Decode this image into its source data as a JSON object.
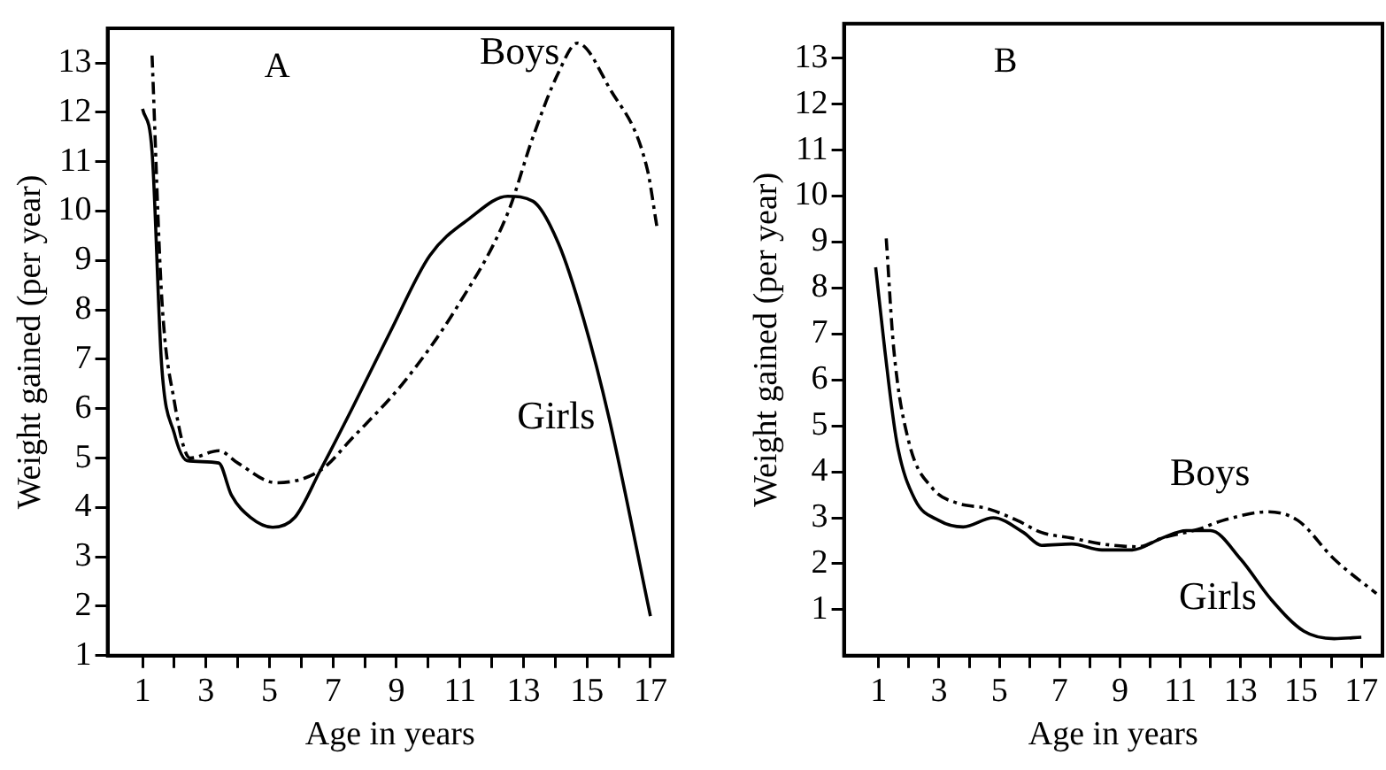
{
  "chart_data": [
    {
      "type": "line",
      "title": "A",
      "xlabel": "Age in years",
      "ylabel": "Weight gained (per year)",
      "xlim": [
        -0.1,
        17.7
      ],
      "ylim": [
        1,
        13.7
      ],
      "xticks": [
        1,
        {
          "value": 2,
          "label": null
        },
        3,
        {
          "value": 4,
          "label": null
        },
        5,
        {
          "value": 6,
          "label": null
        },
        7,
        {
          "value": 8,
          "label": null
        },
        9,
        {
          "value": 10,
          "label": null
        },
        11,
        {
          "value": 12,
          "label": null
        },
        13,
        {
          "value": 14,
          "label": null
        },
        15,
        {
          "value": 16,
          "label": null
        },
        17
      ],
      "yticks": [
        1,
        2,
        3,
        4,
        5,
        6,
        7,
        8,
        9,
        10,
        11,
        12,
        13
      ],
      "grid": false,
      "marker": "none",
      "series": [
        {
          "name": "Boys",
          "color": "#000000",
          "line_style": "dashed",
          "x": [
            1.3,
            1.6,
            2.0,
            2.5,
            3.4,
            4.0,
            5.2,
            6.6,
            7.6,
            9.25,
            10.9,
            12.5,
            13.3,
            14.1,
            14.7,
            15.7,
            16.9,
            17.2
          ],
          "values": [
            13.15,
            8.3,
            6.15,
            5.0,
            5.15,
            4.9,
            4.5,
            4.75,
            5.4,
            6.55,
            8.05,
            9.95,
            11.5,
            12.8,
            13.4,
            12.5,
            10.85,
            9.7
          ]
        },
        {
          "name": "Girls",
          "color": "#000000",
          "line_style": "solid",
          "x": [
            1.0,
            1.3,
            1.6,
            2.0,
            2.4,
            3.4,
            3.8,
            4.4,
            5.1,
            5.8,
            6.6,
            7.6,
            8.8,
            10.05,
            11.3,
            12.5,
            13.3,
            14.1,
            14.9,
            15.7,
            17.0
          ],
          "values": [
            12.07,
            11.2,
            6.9,
            5.5,
            4.95,
            4.9,
            4.25,
            3.8,
            3.6,
            3.8,
            4.75,
            6.0,
            7.55,
            9.1,
            9.85,
            10.3,
            10.2,
            9.35,
            7.8,
            5.8,
            1.8
          ]
        }
      ]
    },
    {
      "type": "line",
      "title": "B",
      "xlabel": "Age in years",
      "ylabel": "Weight gained (per year)",
      "xlim": [
        -0.15,
        17.7
      ],
      "ylim": [
        0,
        13.75
      ],
      "xticks": [
        1,
        {
          "value": 2,
          "label": null
        },
        3,
        {
          "value": 4,
          "label": null
        },
        5,
        {
          "value": 6,
          "label": null
        },
        7,
        {
          "value": 8,
          "label": null
        },
        9,
        {
          "value": 10,
          "label": null
        },
        11,
        {
          "value": 12,
          "label": null
        },
        13,
        {
          "value": 14,
          "label": null
        },
        15,
        {
          "value": 16,
          "label": null
        },
        17
      ],
      "yticks": [
        1,
        2,
        3,
        4,
        5,
        6,
        7,
        8,
        9,
        10,
        11,
        12,
        13
      ],
      "grid": false,
      "marker": "none",
      "series": [
        {
          "name": "Boys",
          "color": "#000000",
          "line_style": "dashed",
          "x": [
            1.25,
            1.5,
            2.0,
            2.8,
            3.6,
            4.6,
            5.6,
            6.4,
            7.4,
            8.4,
            9.6,
            10.4,
            11.6,
            12.4,
            13.9,
            14.9,
            16.1,
            17.5
          ],
          "values": [
            9.08,
            6.67,
            4.65,
            3.63,
            3.32,
            3.2,
            2.94,
            2.68,
            2.56,
            2.43,
            2.37,
            2.56,
            2.75,
            2.94,
            3.13,
            2.94,
            2.1,
            1.35
          ]
        },
        {
          "name": "Girls",
          "color": "#000000",
          "line_style": "solid",
          "x": [
            0.9,
            1.2,
            1.6,
            2.2,
            3.0,
            3.8,
            4.8,
            5.8,
            6.4,
            7.4,
            8.4,
            9.4,
            10.4,
            11.2,
            12.0,
            13.0,
            14.0,
            15.1,
            16.1,
            17.0
          ],
          "values": [
            8.45,
            6.67,
            4.65,
            3.4,
            2.94,
            2.8,
            3.0,
            2.68,
            2.4,
            2.43,
            2.3,
            2.3,
            2.56,
            2.72,
            2.72,
            2.1,
            1.23,
            0.53,
            0.37,
            0.4
          ]
        }
      ]
    }
  ]
}
